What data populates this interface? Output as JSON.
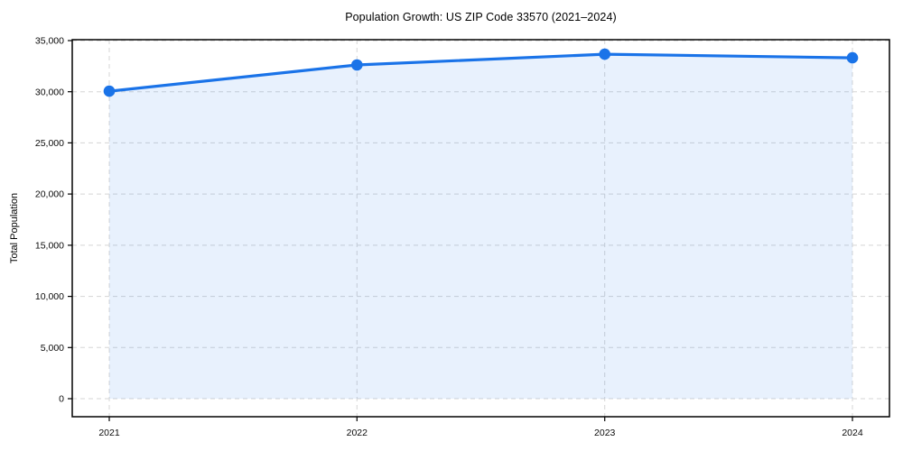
{
  "chart_data": {
    "type": "area",
    "title": "Population Growth: US ZIP Code 33570 (2021–2024)",
    "xlabel": "",
    "ylabel": "Total Population",
    "categories": [
      "2021",
      "2022",
      "2023",
      "2024"
    ],
    "series": [
      {
        "name": "Total Population",
        "values": [
          30050,
          32620,
          33670,
          33320
        ]
      }
    ],
    "ylim": [
      0,
      35000
    ],
    "yticks": [
      0,
      5000,
      10000,
      15000,
      20000,
      25000,
      30000,
      35000
    ],
    "ytick_labels": [
      "0",
      "5,000",
      "10,000",
      "15,000",
      "20,000",
      "25,000",
      "30,000",
      "35,000"
    ],
    "grid": {
      "horizontal": true,
      "vertical": true,
      "style": "dashed",
      "color": "#d5d5d5"
    },
    "legend_position": "none",
    "line_color": "#1a73e8",
    "marker": "circle",
    "fill_color": "rgba(26,115,232,0.10)",
    "background_color": "#ffffff",
    "spine_color": "#000000"
  }
}
